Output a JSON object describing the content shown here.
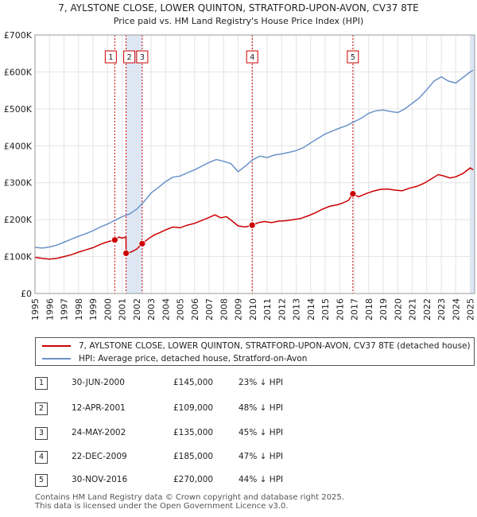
{
  "chart_data": {
    "type": "line",
    "title": "7, AYLSTONE CLOSE, LOWER QUINTON, STRATFORD-UPON-AVON, CV37 8TE",
    "subtitle": "Price paid vs. HM Land Registry's House Price Index (HPI)",
    "xlim": [
      1995,
      2025.3
    ],
    "ylim": [
      0,
      700000
    ],
    "y_ticks": [
      {
        "value": 0,
        "label": "£0"
      },
      {
        "value": 100000,
        "label": "£100K"
      },
      {
        "value": 200000,
        "label": "£200K"
      },
      {
        "value": 300000,
        "label": "£300K"
      },
      {
        "value": 400000,
        "label": "£400K"
      },
      {
        "value": 500000,
        "label": "£500K"
      },
      {
        "value": 600000,
        "label": "£600K"
      },
      {
        "value": 700000,
        "label": "£700K"
      }
    ],
    "x_ticks": [
      "1995",
      "1996",
      "1997",
      "1998",
      "1999",
      "2000",
      "2001",
      "2002",
      "2003",
      "2004",
      "2005",
      "2006",
      "2007",
      "2008",
      "2009",
      "2010",
      "2011",
      "2012",
      "2013",
      "2014",
      "2015",
      "2016",
      "2017",
      "2018",
      "2019",
      "2020",
      "2021",
      "2022",
      "2023",
      "2024",
      "2025"
    ],
    "series": [
      {
        "name": "7, AYLSTONE CLOSE, LOWER QUINTON, STRATFORD-UPON-AVON, CV37 8TE (detached house)",
        "color": "#cc0000",
        "points": [
          [
            1995.0,
            98000
          ],
          [
            1995.5,
            95000
          ],
          [
            1996.0,
            93000
          ],
          [
            1996.5,
            95000
          ],
          [
            1997.0,
            100000
          ],
          [
            1997.5,
            105000
          ],
          [
            1998.0,
            112000
          ],
          [
            1998.5,
            118000
          ],
          [
            1999.0,
            124000
          ],
          [
            1999.5,
            133000
          ],
          [
            2000.0,
            140000
          ],
          [
            2000.5,
            145000
          ],
          [
            2000.8,
            153000
          ],
          [
            2001.0,
            150000
          ],
          [
            2001.27,
            153000
          ],
          [
            2001.28,
            109000
          ],
          [
            2001.6,
            112000
          ],
          [
            2002.0,
            120000
          ],
          [
            2002.39,
            135000
          ],
          [
            2002.8,
            148000
          ],
          [
            2003.2,
            158000
          ],
          [
            2003.6,
            165000
          ],
          [
            2004.0,
            172000
          ],
          [
            2004.5,
            180000
          ],
          [
            2005.0,
            178000
          ],
          [
            2005.5,
            185000
          ],
          [
            2006.0,
            190000
          ],
          [
            2006.5,
            198000
          ],
          [
            2007.0,
            206000
          ],
          [
            2007.4,
            213000
          ],
          [
            2007.8,
            205000
          ],
          [
            2008.2,
            208000
          ],
          [
            2008.6,
            196000
          ],
          [
            2009.0,
            183000
          ],
          [
            2009.5,
            180000
          ],
          [
            2009.97,
            185000
          ],
          [
            2010.4,
            192000
          ],
          [
            2010.8,
            195000
          ],
          [
            2011.3,
            192000
          ],
          [
            2011.8,
            196000
          ],
          [
            2012.3,
            197000
          ],
          [
            2012.8,
            200000
          ],
          [
            2013.3,
            203000
          ],
          [
            2013.8,
            210000
          ],
          [
            2014.3,
            218000
          ],
          [
            2014.8,
            228000
          ],
          [
            2015.3,
            236000
          ],
          [
            2015.8,
            240000
          ],
          [
            2016.2,
            245000
          ],
          [
            2016.6,
            252000
          ],
          [
            2016.91,
            270000
          ],
          [
            2017.3,
            262000
          ],
          [
            2017.8,
            270000
          ],
          [
            2018.3,
            277000
          ],
          [
            2018.8,
            282000
          ],
          [
            2019.3,
            283000
          ],
          [
            2019.8,
            280000
          ],
          [
            2020.3,
            278000
          ],
          [
            2020.8,
            285000
          ],
          [
            2021.3,
            290000
          ],
          [
            2021.8,
            298000
          ],
          [
            2022.3,
            310000
          ],
          [
            2022.8,
            322000
          ],
          [
            2023.2,
            318000
          ],
          [
            2023.6,
            313000
          ],
          [
            2024.0,
            316000
          ],
          [
            2024.5,
            325000
          ],
          [
            2025.0,
            340000
          ],
          [
            2025.2,
            335000
          ]
        ]
      },
      {
        "name": "HPI: Average price, detached house, Stratford-on-Avon",
        "color": "#6b93c9",
        "points": [
          [
            1995.0,
            125000
          ],
          [
            1995.5,
            123000
          ],
          [
            1996.0,
            126000
          ],
          [
            1996.5,
            131000
          ],
          [
            1997.0,
            139000
          ],
          [
            1997.5,
            147000
          ],
          [
            1998.0,
            155000
          ],
          [
            1998.5,
            162000
          ],
          [
            1999.0,
            170000
          ],
          [
            1999.5,
            180000
          ],
          [
            2000.0,
            188000
          ],
          [
            2000.5,
            198000
          ],
          [
            2001.0,
            208000
          ],
          [
            2001.5,
            215000
          ],
          [
            2002.0,
            228000
          ],
          [
            2002.5,
            248000
          ],
          [
            2003.0,
            272000
          ],
          [
            2003.5,
            287000
          ],
          [
            2004.0,
            303000
          ],
          [
            2004.5,
            315000
          ],
          [
            2005.0,
            318000
          ],
          [
            2005.5,
            327000
          ],
          [
            2006.0,
            335000
          ],
          [
            2006.5,
            345000
          ],
          [
            2007.0,
            355000
          ],
          [
            2007.5,
            363000
          ],
          [
            2008.0,
            358000
          ],
          [
            2008.5,
            352000
          ],
          [
            2009.0,
            330000
          ],
          [
            2009.5,
            345000
          ],
          [
            2010.0,
            362000
          ],
          [
            2010.5,
            372000
          ],
          [
            2011.0,
            368000
          ],
          [
            2011.5,
            375000
          ],
          [
            2012.0,
            378000
          ],
          [
            2012.5,
            382000
          ],
          [
            2013.0,
            387000
          ],
          [
            2013.5,
            395000
          ],
          [
            2014.0,
            408000
          ],
          [
            2014.5,
            420000
          ],
          [
            2015.0,
            432000
          ],
          [
            2015.5,
            440000
          ],
          [
            2016.0,
            448000
          ],
          [
            2016.5,
            455000
          ],
          [
            2017.0,
            465000
          ],
          [
            2017.5,
            475000
          ],
          [
            2018.0,
            488000
          ],
          [
            2018.5,
            495000
          ],
          [
            2019.0,
            497000
          ],
          [
            2019.5,
            493000
          ],
          [
            2020.0,
            490000
          ],
          [
            2020.5,
            500000
          ],
          [
            2021.0,
            515000
          ],
          [
            2021.5,
            530000
          ],
          [
            2022.0,
            552000
          ],
          [
            2022.5,
            575000
          ],
          [
            2023.0,
            587000
          ],
          [
            2023.5,
            575000
          ],
          [
            2024.0,
            570000
          ],
          [
            2024.5,
            585000
          ],
          [
            2025.0,
            600000
          ],
          [
            2025.2,
            605000
          ]
        ]
      }
    ],
    "sales": [
      {
        "id": "1",
        "x": 2000.5,
        "value": 145000
      },
      {
        "id": "2",
        "x": 2001.28,
        "value": 109000
      },
      {
        "id": "3",
        "x": 2002.39,
        "value": 135000
      },
      {
        "id": "4",
        "x": 2009.97,
        "value": 185000
      },
      {
        "id": "5",
        "x": 2016.91,
        "value": 270000
      }
    ],
    "colors": {
      "band": "#dde7f5",
      "marker_line": "#cc0000",
      "grid": "#e3e3e3"
    }
  },
  "legend": {
    "property": "7, AYLSTONE CLOSE, LOWER QUINTON, STRATFORD-UPON-AVON, CV37 8TE (detached house)",
    "hpi": "HPI: Average price, detached house, Stratford-on-Avon"
  },
  "sales_table": [
    {
      "num": "1",
      "date": "30-JUN-2000",
      "price": "£145,000",
      "hpi": "23% ↓ HPI"
    },
    {
      "num": "2",
      "date": "12-APR-2001",
      "price": "£109,000",
      "hpi": "48% ↓ HPI"
    },
    {
      "num": "3",
      "date": "24-MAY-2002",
      "price": "£135,000",
      "hpi": "45% ↓ HPI"
    },
    {
      "num": "4",
      "date": "22-DEC-2009",
      "price": "£185,000",
      "hpi": "47% ↓ HPI"
    },
    {
      "num": "5",
      "date": "30-NOV-2016",
      "price": "£270,000",
      "hpi": "44% ↓ HPI"
    }
  ],
  "footer": {
    "line1": "Contains HM Land Registry data © Crown copyright and database right 2025.",
    "line2": "This data is licensed under the Open Government Licence v3.0."
  }
}
